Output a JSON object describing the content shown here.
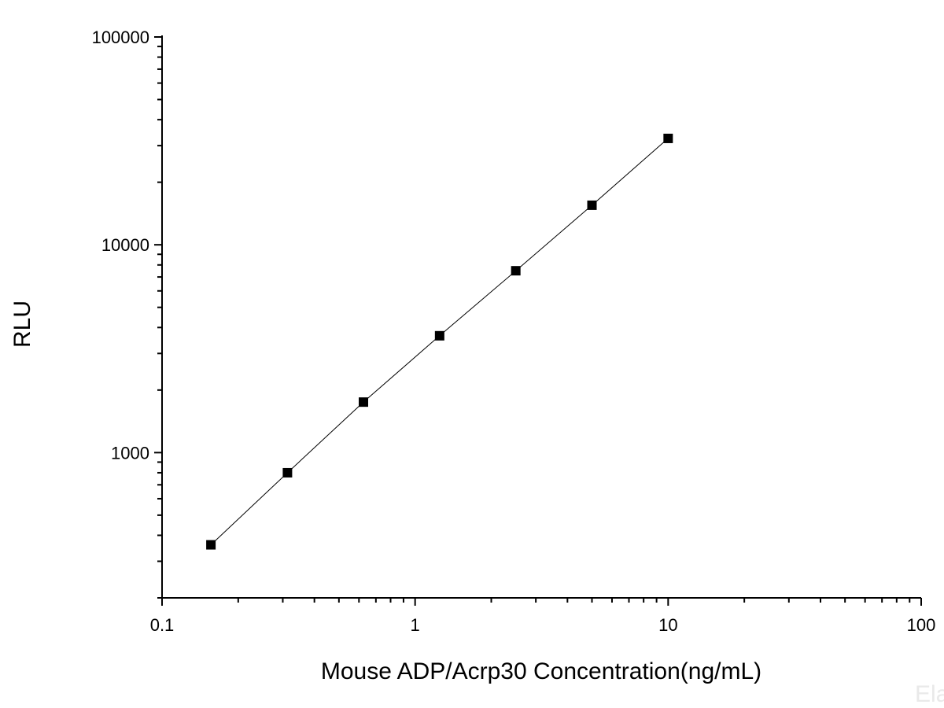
{
  "chart_data": {
    "type": "scatter",
    "title": "",
    "xlabel": "Mouse ADP/Acrp30 Concentration(ng/mL)",
    "ylabel": "RLU",
    "x_scale": "log",
    "y_scale": "log",
    "xlim": [
      0.1,
      100
    ],
    "ylim": [
      200,
      100000
    ],
    "x_ticks": [
      0.1,
      1,
      10,
      100
    ],
    "x_tick_labels": [
      "0.1",
      "1",
      "10",
      "100"
    ],
    "y_ticks": [
      1000,
      10000,
      100000
    ],
    "y_tick_labels": [
      "1000",
      "10000",
      "100000"
    ],
    "grid": false,
    "legend": "none",
    "series": [
      {
        "x": [
          0.156,
          0.313,
          0.625,
          1.25,
          2.5,
          5,
          10
        ],
        "y": [
          360,
          800,
          1750,
          3650,
          7500,
          15500,
          32500
        ],
        "marker": "square",
        "line": true
      }
    ],
    "colors": {
      "marker": "#000000",
      "line": "#000000"
    },
    "watermark": "Ela"
  }
}
